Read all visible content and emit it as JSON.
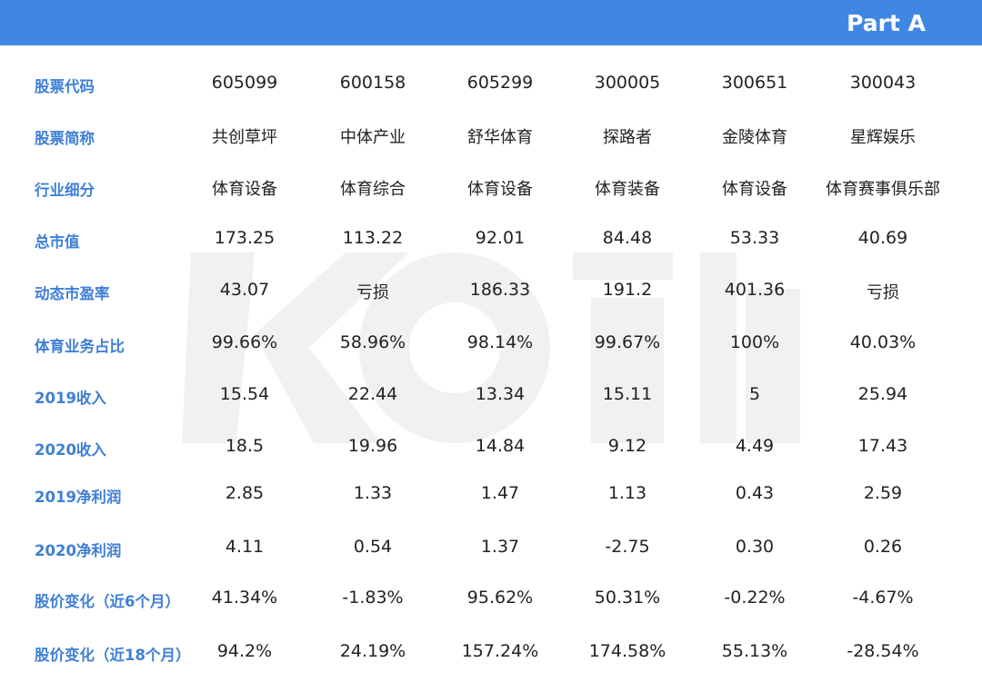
{
  "header": {
    "part_label": "Part A",
    "accent_color": "#3f87e3",
    "label_color": "#3f7fd6"
  },
  "watermark": {
    "icon": "brand-logo-watermark"
  },
  "chart_data": {
    "type": "table",
    "columns": [
      "605099",
      "600158",
      "605299",
      "300005",
      "300651",
      "300043"
    ],
    "rows": [
      {
        "label": "股票代码",
        "values": [
          "605099",
          "600158",
          "605299",
          "300005",
          "300651",
          "300043"
        ]
      },
      {
        "label": "股票简称",
        "values": [
          "共创草坪",
          "中体产业",
          "舒华体育",
          "探路者",
          "金陵体育",
          "星辉娱乐"
        ]
      },
      {
        "label": "行业细分",
        "values": [
          "体育设备",
          "体育综合",
          "体育设备",
          "体育装备",
          "体育设备",
          "体育赛事俱乐部"
        ]
      },
      {
        "label": "总市值",
        "values": [
          "173.25",
          "113.22",
          "92.01",
          "84.48",
          "53.33",
          "40.69"
        ]
      },
      {
        "label": "动态市盈率",
        "values": [
          "43.07",
          "亏损",
          "186.33",
          "191.2",
          "401.36",
          "亏损"
        ]
      },
      {
        "label": "体育业务占比",
        "values": [
          "99.66%",
          "58.96%",
          "98.14%",
          "99.67%",
          "100%",
          "40.03%"
        ]
      },
      {
        "label": "2019收入",
        "values": [
          "15.54",
          "22.44",
          "13.34",
          "15.11",
          "5",
          "25.94"
        ]
      },
      {
        "label": "2020收入",
        "values": [
          "18.5",
          "19.96",
          "14.84",
          "9.12",
          "4.49",
          "17.43"
        ]
      },
      {
        "label": "2019净利润",
        "values": [
          "2.85",
          "1.33",
          "1.47",
          "1.13",
          "0.43",
          "2.59"
        ]
      },
      {
        "label": "2020净利润",
        "values": [
          "4.11",
          "0.54",
          "1.37",
          "-2.75",
          "0.30",
          "0.26"
        ]
      },
      {
        "label": "股价变化（近6个月）",
        "values": [
          "41.34%",
          "-1.83%",
          "95.62%",
          "50.31%",
          "-0.22%",
          "-4.67%"
        ]
      },
      {
        "label": "股价变化（近18个月）",
        "values": [
          "94.2%",
          "24.19%",
          "157.24%",
          "174.58%",
          "55.13%",
          "-28.54%"
        ]
      }
    ]
  }
}
